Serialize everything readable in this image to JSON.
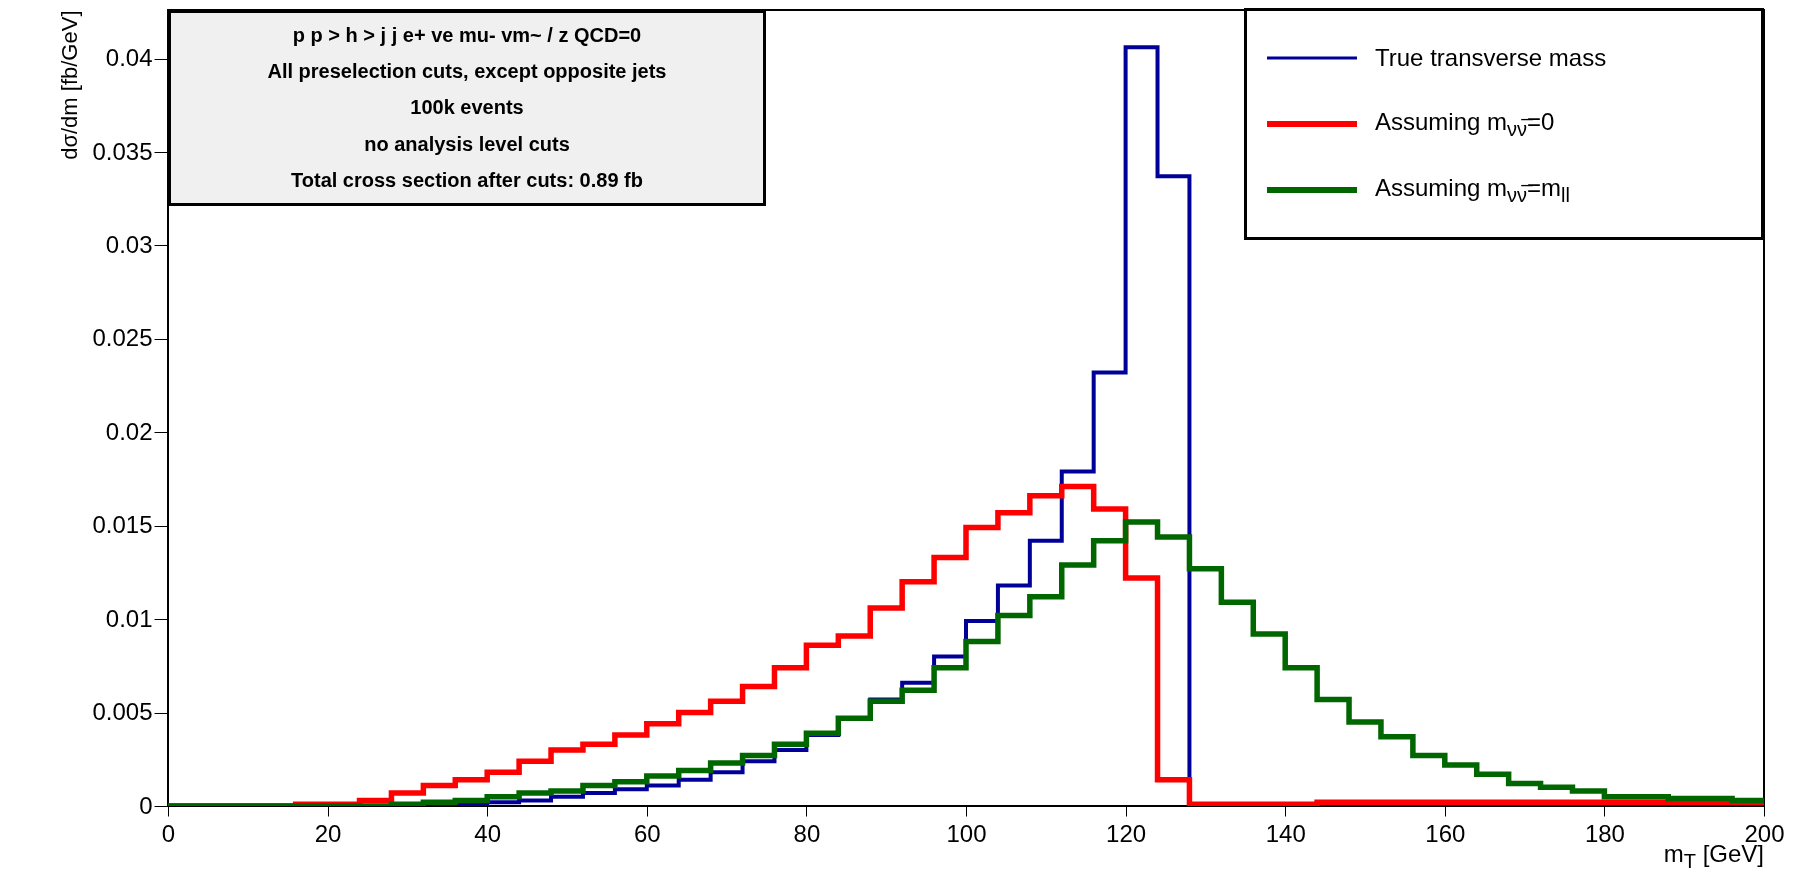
{
  "chart_data": {
    "type": "histogram",
    "xlabel": "m$_{T}$ [GeV]",
    "ylabel": "dσ/dm [fb/GeV]",
    "annotations": [
      "p p > h > j j e+ ve mu- vm~ / z QCD=0",
      "All preselection cuts, except opposite jets",
      "100k events",
      "no analysis level cuts",
      "Total cross section after cuts: 0.89 fb"
    ],
    "bins": [
      0,
      4,
      8,
      12,
      16,
      20,
      24,
      28,
      32,
      36,
      40,
      44,
      48,
      52,
      56,
      60,
      64,
      68,
      72,
      76,
      80,
      84,
      88,
      92,
      96,
      100,
      104,
      108,
      112,
      116,
      120,
      124,
      128,
      132,
      136,
      140,
      144,
      148,
      152,
      156,
      160,
      164,
      168,
      172,
      176,
      180,
      184,
      188,
      192,
      196,
      200
    ],
    "series": [
      {
        "name": "True transverse mass",
        "color": "#000099",
        "values": [
          0,
          0,
          0,
          0,
          0,
          0,
          0,
          0,
          0,
          0.0001,
          0.0002,
          0.0003,
          0.0005,
          0.0007,
          0.0009,
          0.0011,
          0.0014,
          0.0018,
          0.0024,
          0.003,
          0.0038,
          0.0047,
          0.0057,
          0.0066,
          0.008,
          0.0099,
          0.0118,
          0.0142,
          0.0179,
          0.0232,
          0.0406,
          0.0337,
          0,
          0,
          0,
          0,
          0,
          0,
          0,
          0,
          0,
          0,
          0,
          0,
          0,
          0,
          0,
          0,
          0,
          0
        ]
      },
      {
        "name": "Assuming m$_{νν̅}$=0",
        "color": "#ff0000",
        "values": [
          0,
          0,
          0,
          0,
          0.0001,
          0.0001,
          0.0003,
          0.0007,
          0.0011,
          0.0014,
          0.0018,
          0.0024,
          0.003,
          0.0033,
          0.0038,
          0.0044,
          0.005,
          0.0056,
          0.0064,
          0.0074,
          0.0086,
          0.0091,
          0.0106,
          0.012,
          0.0133,
          0.0149,
          0.0157,
          0.0166,
          0.0171,
          0.0159,
          0.0122,
          0.0014,
          0.0001,
          0.0001,
          0.0001,
          0.0001,
          0.0002,
          0.0002,
          0.0002,
          0.0002,
          0.0002,
          0.0002,
          0.0002,
          0.0002,
          0.0002,
          0.0002,
          0.0002,
          0.0002,
          0.0002,
          0.0002
        ]
      },
      {
        "name": "Assuming m$_{νν̅}$=m$_{ll}$",
        "color": "#006600",
        "values": [
          0,
          0,
          0,
          0,
          0,
          0,
          0,
          0.0001,
          0.0002,
          0.0003,
          0.0005,
          0.0007,
          0.0008,
          0.0011,
          0.0013,
          0.0016,
          0.0019,
          0.0023,
          0.0027,
          0.0033,
          0.0039,
          0.0047,
          0.0056,
          0.0062,
          0.0074,
          0.0088,
          0.0102,
          0.0112,
          0.0129,
          0.0142,
          0.0152,
          0.0144,
          0.0127,
          0.0109,
          0.0092,
          0.0074,
          0.0057,
          0.0045,
          0.0037,
          0.0027,
          0.0022,
          0.0017,
          0.0012,
          0.001,
          0.0008,
          0.0005,
          0.0005,
          0.0004,
          0.0004,
          0.0003
        ]
      }
    ],
    "xlim": [
      0,
      200
    ],
    "xticks": [
      0,
      20,
      40,
      60,
      80,
      100,
      120,
      140,
      160,
      180,
      200
    ],
    "ylim": [
      0,
      0.0426
    ],
    "yticks": [
      0,
      0.005,
      0.01,
      0.015,
      0.02,
      0.025,
      0.03,
      0.035,
      0.04
    ],
    "legend": "top right"
  }
}
